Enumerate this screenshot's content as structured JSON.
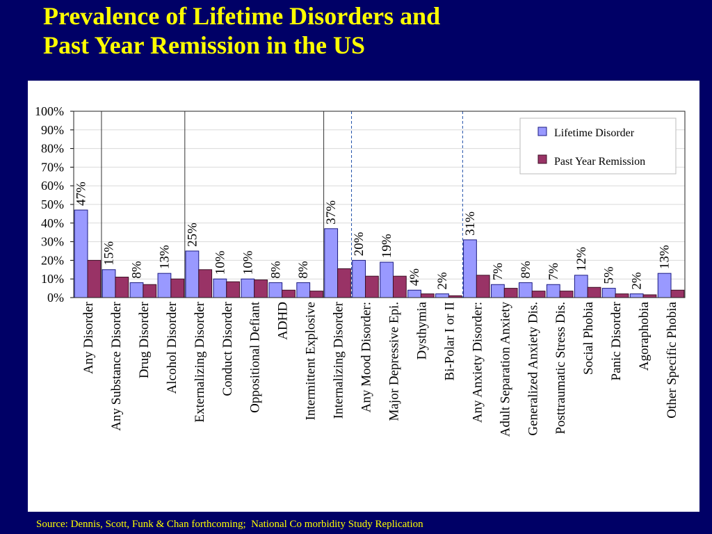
{
  "title_line1": "Prevalence of Lifetime Disorders and",
  "title_line2": "Past Year Remission in the US",
  "source": "Source: Dennis, Scott, Funk & Chan forthcoming;  National Co morbidity Study Replication",
  "colors": {
    "background": "#000066",
    "title": "#ffff00",
    "lifetime": "#9999ff",
    "remission": "#993366"
  },
  "chart_data": {
    "type": "bar",
    "title": "",
    "xlabel": "",
    "ylabel": "",
    "ylim": [
      0,
      100
    ],
    "yticks": [
      "0%",
      "10%",
      "20%",
      "30%",
      "40%",
      "50%",
      "60%",
      "70%",
      "80%",
      "90%",
      "100%"
    ],
    "grid": true,
    "legend_position": "top-right",
    "categories": [
      "Any Disorder",
      "Any Substance Disorder",
      "Drug Disorder",
      "Alcohol Disorder",
      "Externalizing Disorder",
      "Conduct Disorder",
      "Oppositional Defiant",
      "ADHD",
      "Intermittent Explosive",
      "Internalizing Disorder",
      "Any Mood Disorder:",
      "Major Depressive Epi.",
      "Dysthymia",
      "Bi-Polar I or II",
      "Any Anxiety Disorder:",
      "Adult Separation Anxiety",
      "Generalized Anxiety Dis.",
      "Posttraumatic Stress Dis.",
      "Social Phobia",
      "Panic Disorder",
      "Agoraphobia",
      "Other Specific Phobia"
    ],
    "series": [
      {
        "name": "Lifetime Disorder",
        "values": [
          47,
          15,
          8,
          13,
          25,
          10,
          10,
          8,
          8,
          37,
          20,
          19,
          4,
          2,
          31,
          7,
          8,
          7,
          12,
          5,
          2,
          13
        ],
        "data_labels": [
          "47%",
          "15%",
          "8%",
          "13%",
          "25%",
          "10%",
          "10%",
          "8%",
          "8%",
          "37%",
          "20%",
          "19%",
          "4%",
          "2%",
          "31%",
          "7%",
          "8%",
          "7%",
          "12%",
          "5%",
          "2%",
          "13%"
        ]
      },
      {
        "name": "Past Year Remission",
        "values": [
          20,
          11,
          7,
          10,
          15,
          8.5,
          9.5,
          4,
          3.5,
          15.5,
          11.5,
          11.5,
          2,
          1,
          12,
          5,
          3.5,
          3.5,
          5.5,
          2,
          1.5,
          4
        ]
      }
    ]
  }
}
